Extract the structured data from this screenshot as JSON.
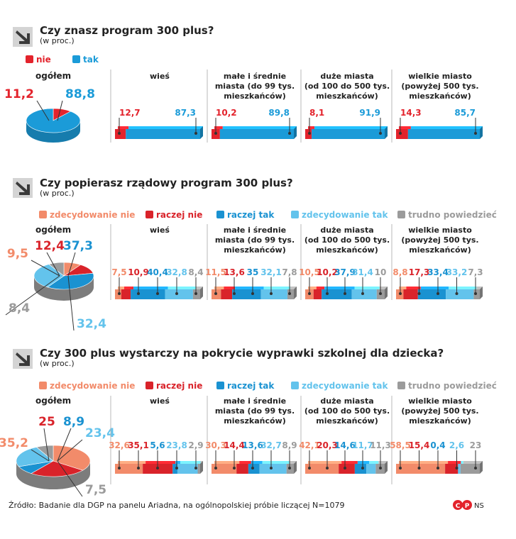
{
  "colors": {
    "nie": "#e3232c",
    "tak": "#1b9bd8",
    "zdecydowanie_nie": "#f28b6a",
    "raczej_nie": "#d9232a",
    "raczej_tak": "#1a92d1",
    "zdecydowanie_tak": "#63c3ec",
    "trudno": "#9b9b9b",
    "text": "#222222",
    "rule": "#b8b8b8"
  },
  "icons": [
    "arrow-down-right-icon",
    "cp-logo-icon"
  ],
  "footer": {
    "source": "Źródło: Badanie dla DGP na panelu Ariadna, na ogólnopolskiej próbie liczącej N=1079",
    "credit": "NS"
  },
  "chart_data": [
    {
      "type": "bar",
      "stacked": true,
      "title": "Czy znasz program 300 plus?",
      "subtitle": "(w proc.)",
      "legend": [
        "nie",
        "tak"
      ],
      "total": {
        "label": "ogółem",
        "values": [
          "11,2",
          "88,8"
        ]
      },
      "categories": [
        "wieś",
        "małe i średnie miasta (do 99 tys. mieszkańców)",
        "duże miasta (od 100 do 500 tys. mieszkańców)",
        "wielkie miasto (powyżej 500 tys. mieszkańców)"
      ],
      "series": [
        {
          "name": "nie",
          "values": [
            "12,7",
            "10,2",
            "8,1",
            "14,3"
          ]
        },
        {
          "name": "tak",
          "values": [
            "87,3",
            "89,8",
            "91,9",
            "85,7"
          ]
        }
      ]
    },
    {
      "type": "bar",
      "stacked": true,
      "title": "Czy popierasz rządowy program 300 plus?",
      "subtitle": "(w proc.)",
      "legend": [
        "zdecydowanie nie",
        "raczej nie",
        "raczej tak",
        "zdecydowanie tak",
        "trudno powiedzieć"
      ],
      "total": {
        "label": "ogółem",
        "values": [
          "9,5",
          "12,4",
          "37,3",
          "32,4",
          "8,4"
        ]
      },
      "categories": [
        "wieś",
        "małe i średnie miasta (do 99 tys. mieszkańców)",
        "duże miasta (od 100 do 500 tys. mieszkańców)",
        "wielkie miasto (powyżej 500 tys. mieszkańców)"
      ],
      "series": [
        {
          "name": "zdecydowanie nie",
          "values": [
            "7,5",
            "11,5",
            "10,5",
            "8,8"
          ]
        },
        {
          "name": "raczej nie",
          "values": [
            "10,9",
            "13,6",
            "10,2",
            "17,3"
          ]
        },
        {
          "name": "raczej tak",
          "values": [
            "40,4",
            "35",
            "37,9",
            "33,4"
          ]
        },
        {
          "name": "zdecydowanie tak",
          "values": [
            "32,8",
            "32,1",
            "31,4",
            "33,2"
          ]
        },
        {
          "name": "trudno powiedzieć",
          "values": [
            "8,4",
            "7,8",
            "10",
            "7,3"
          ]
        }
      ]
    },
    {
      "type": "bar",
      "stacked": true,
      "title": "Czy 300 plus wystarczy na pokrycie wyprawki szkolnej dla dziecka?",
      "subtitle": "(w proc.)",
      "legend": [
        "zdecydowanie nie",
        "raczej nie",
        "raczej tak",
        "zdecydowanie tak",
        "trudno powiedzieć"
      ],
      "total": {
        "label": "ogółem",
        "values": [
          "35,2",
          "25",
          "8,9",
          "23,4",
          "7,5"
        ]
      },
      "categories": [
        "wieś",
        "małe i średnie miasta (do 99 tys. mieszkańców)",
        "duże miasta (od 100 do 500 tys. mieszkańców)",
        "wielkie miasto (powyżej 500 tys. mieszkańców)"
      ],
      "series": [
        {
          "name": "zdecydowanie nie",
          "values": [
            "32,6",
            "30,3",
            "42,1",
            "58,5"
          ]
        },
        {
          "name": "raczej nie",
          "values": [
            "35,1",
            "14,4",
            "20,3",
            "15,4"
          ]
        },
        {
          "name": "raczej tak",
          "values": [
            "5,6",
            "13,6",
            "14,6",
            "0,4"
          ]
        },
        {
          "name": "zdecydowanie tak",
          "values": [
            "23,8",
            "32,7",
            "11,7",
            "2,6"
          ]
        },
        {
          "name": "trudno powiedzieć",
          "values": [
            "2,9",
            "8,9",
            "11,3",
            "23"
          ]
        }
      ]
    }
  ]
}
